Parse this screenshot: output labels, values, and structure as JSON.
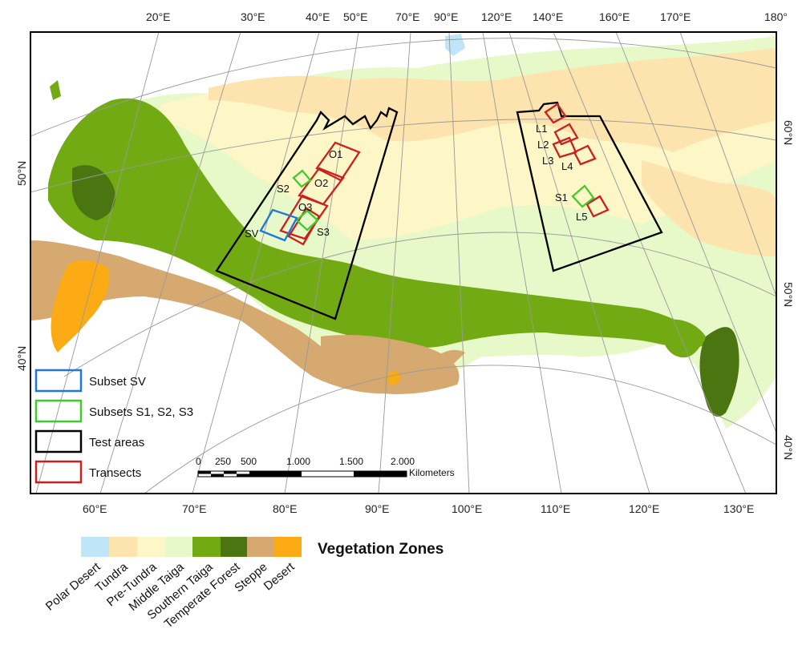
{
  "top_lon_labels": [
    "20°E",
    "30°E",
    "40°E",
    "50°E",
    "70°E",
    "90°E",
    "120°E",
    "140°E",
    "160°E",
    "170°E",
    "180°"
  ],
  "bottom_lon_labels": [
    "60°E",
    "70°E",
    "80°E",
    "90°E",
    "100°E",
    "110°E",
    "120°E",
    "130°E"
  ],
  "left_lat_labels": [
    "50°N",
    "40°N"
  ],
  "right_lat_labels": [
    "60°N",
    "50°N",
    "40°N"
  ],
  "legend": [
    {
      "label": "Subset SV",
      "color": "#1f78d8"
    },
    {
      "label": "Subsets S1, S2, S3",
      "color": "#3dcc2a"
    },
    {
      "label": "Test areas",
      "color": "#000000"
    },
    {
      "label": "Transects",
      "color": "#cc1f1f"
    }
  ],
  "scale_bar": {
    "ticks": [
      "0",
      "250",
      "500",
      "1.000",
      "1.500",
      "2.000"
    ],
    "unit": "Kilometers"
  },
  "areas": {
    "west": {
      "transects": [
        "O1",
        "O2",
        "O3"
      ],
      "subsets": [
        "S2",
        "S3"
      ],
      "sv": "SV"
    },
    "east": {
      "transects": [
        "L1",
        "L2",
        "L3",
        "L4",
        "L5"
      ],
      "subsets": [
        "S1"
      ]
    }
  },
  "vegetation": {
    "title": "Vegetation Zones",
    "zones": [
      {
        "label": "Polar Desert",
        "color": "#bfe6f8"
      },
      {
        "label": "Tundra",
        "color": "#fde3ad"
      },
      {
        "label": "Pre-Tundra",
        "color": "#fdf6c6"
      },
      {
        "label": "Middle Taiga",
        "color": "#e7f8c9"
      },
      {
        "label": "Southern Taiga",
        "color": "#72aa14"
      },
      {
        "label": "Temperate Forest",
        "color": "#4b7510"
      },
      {
        "label": "Steppe",
        "color": "#d5a96f"
      },
      {
        "label": "Desert",
        "color": "#fdab14"
      }
    ]
  }
}
